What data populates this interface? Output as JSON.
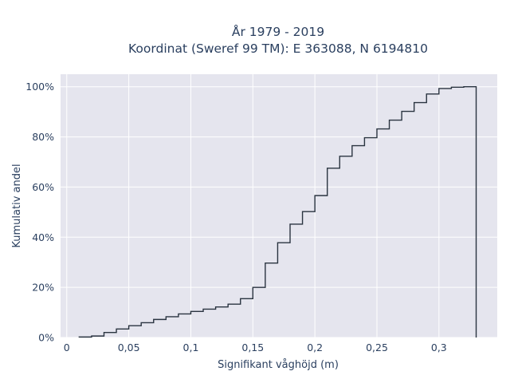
{
  "chart_data": {
    "type": "step",
    "title_lines": [
      "År 1979 - 2019",
      "Koordinat (Sweref 99 TM): E 363088, N 6194810"
    ],
    "xlabel": "Signifikant våghöjd (m)",
    "ylabel": "Kumulativ andel",
    "xlim": [
      -0.005,
      0.347
    ],
    "ylim": [
      0,
      1.05
    ],
    "x_ticks": [
      0,
      0.05,
      0.1,
      0.15,
      0.2,
      0.25,
      0.3
    ],
    "x_tick_labels": [
      "0",
      "0,05",
      "0,1",
      "0,15",
      "0,2",
      "0,25",
      "0,3"
    ],
    "y_ticks": [
      0,
      0.2,
      0.4,
      0.6,
      0.8,
      1.0
    ],
    "y_tick_labels": [
      "0%",
      "20%",
      "40%",
      "60%",
      "80%",
      "100%"
    ],
    "grid": true,
    "colors": {
      "plot_bg": "#e5e5ee",
      "grid": "#ffffff",
      "line": "#2a3440",
      "text": "#2a3f5f"
    },
    "bin_edges": [
      0.01,
      0.02,
      0.03,
      0.04,
      0.05,
      0.06,
      0.07,
      0.08,
      0.09,
      0.1,
      0.11,
      0.12,
      0.13,
      0.14,
      0.15,
      0.16,
      0.17,
      0.18,
      0.19,
      0.2,
      0.21,
      0.22,
      0.23,
      0.24,
      0.25,
      0.26,
      0.27,
      0.28,
      0.29,
      0.3,
      0.31,
      0.32,
      0.33
    ],
    "cumulative": [
      0.002,
      0.006,
      0.02,
      0.034,
      0.047,
      0.059,
      0.072,
      0.083,
      0.094,
      0.104,
      0.113,
      0.122,
      0.133,
      0.155,
      0.2,
      0.297,
      0.378,
      0.452,
      0.502,
      0.566,
      0.675,
      0.723,
      0.765,
      0.797,
      0.832,
      0.867,
      0.902,
      0.937,
      0.971,
      0.993,
      0.998,
      1.0
    ]
  }
}
